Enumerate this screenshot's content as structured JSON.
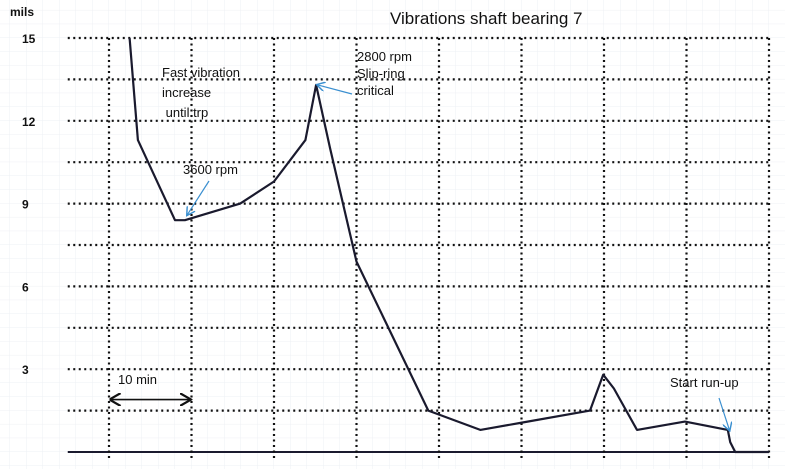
{
  "chart_data": {
    "type": "line",
    "title": "Vibrations shaft bearing 7",
    "ylabel": "mils",
    "xlabel": "",
    "ylim": [
      0,
      15
    ],
    "xlim": [
      -5,
      80
    ],
    "x_unit": "min",
    "yticks": [
      3,
      6,
      9,
      12,
      15
    ],
    "ygrid": [
      0,
      1.5,
      3,
      4.5,
      6,
      7.5,
      9,
      10.5,
      12,
      13.5,
      15
    ],
    "xgrid": [
      0,
      10,
      20,
      30,
      40,
      50,
      60,
      70,
      80
    ],
    "grid": true,
    "series": [
      {
        "name": "vibration",
        "color": "#1a1a2e",
        "x": [
          2.5,
          3.5,
          8.0,
          9.2,
          15.9,
          20.0,
          23.8,
          25.1,
          26.8,
          30.0,
          38.7,
          45.0,
          49.8,
          58.3,
          59.9,
          61.2,
          64.0,
          69.8,
          75.0,
          75.3,
          75.9,
          80.0
        ],
        "y": [
          15.0,
          11.3,
          8.4,
          8.4,
          9.0,
          9.8,
          11.3,
          13.3,
          11.0,
          6.9,
          1.5,
          0.8,
          1.05,
          1.5,
          2.8,
          2.3,
          0.8,
          1.1,
          0.8,
          0.36,
          0,
          0
        ]
      }
    ],
    "scale_bar": {
      "label": "10 min",
      "from": 0,
      "to": 10,
      "y": 1.9
    },
    "annotations": [
      {
        "lines": [
          "Fast vibration",
          "increase",
          " until trp"
        ],
        "arrow": false
      },
      {
        "lines": [
          "3600 rpm"
        ],
        "target": [
          9.5,
          8.6
        ]
      },
      {
        "lines": [
          "2800 rpm",
          "Slip-ring",
          "critical"
        ],
        "target": [
          25.3,
          13.3
        ]
      },
      {
        "lines": [
          "Start run-up"
        ],
        "target": [
          75.2,
          0.8
        ]
      }
    ],
    "annotation_color": "#3a8fd0"
  }
}
